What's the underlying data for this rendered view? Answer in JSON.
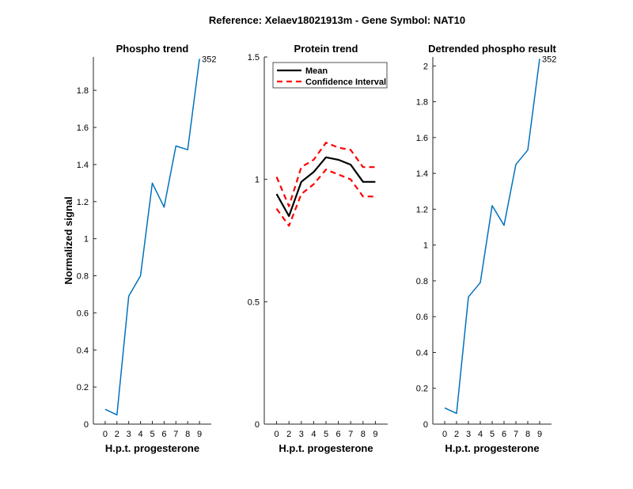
{
  "figure": {
    "title": "Reference:  Xelaev18021913m - Gene Symbol:  NAT10"
  },
  "colors": {
    "phospho_line": "#0072BD",
    "mean_line": "#000000",
    "ci_line": "#FF0000",
    "axis": "#262626",
    "text": "#000000"
  },
  "chart_data": [
    {
      "id": "phospho",
      "type": "line",
      "title": "Phospho trend",
      "xlabel": "H.p.t. progesterone",
      "ylabel": "Normalized signal",
      "xtick_labels": [
        "0",
        "2",
        "3",
        "4",
        "5",
        "6",
        "7",
        "8",
        "9"
      ],
      "yticks": [
        0,
        0.2,
        0.4,
        0.6,
        0.8,
        1,
        1.2,
        1.4,
        1.6,
        1.8
      ],
      "ytick_labels": [
        "0",
        "0.2",
        "0.4",
        "0.6",
        "0.8",
        "1",
        "1.2",
        "1.4",
        "1.6",
        "1.8"
      ],
      "xlim": [
        0,
        10
      ],
      "ylim": [
        0,
        1.98
      ],
      "series": [
        {
          "name": "phospho",
          "values": [
            0.08,
            0.05,
            0.69,
            0.8,
            1.3,
            1.17,
            1.5,
            1.48,
            1.97
          ]
        }
      ],
      "annotation": "352"
    },
    {
      "id": "protein",
      "type": "line",
      "title": "Protein trend",
      "xlabel": "H.p.t. progesterone",
      "ylabel": "",
      "xtick_labels": [
        "0",
        "2",
        "3",
        "4",
        "5",
        "6",
        "7",
        "8",
        "9"
      ],
      "yticks": [
        0,
        0.5,
        1,
        1.5
      ],
      "ytick_labels": [
        "0",
        "0.5",
        "1",
        "1.5"
      ],
      "xlim": [
        0,
        10
      ],
      "ylim": [
        0,
        1.5
      ],
      "series": [
        {
          "name": "Mean",
          "values": [
            0.94,
            0.85,
            0.99,
            1.03,
            1.09,
            1.08,
            1.06,
            0.99,
            0.99
          ]
        },
        {
          "name": "Confidence Interval",
          "values": [
            1.01,
            0.89,
            1.05,
            1.08,
            1.15,
            1.13,
            1.12,
            1.05,
            1.05
          ]
        },
        {
          "name": "Confidence Interval (lower)",
          "values": [
            0.88,
            0.81,
            0.94,
            0.98,
            1.04,
            1.02,
            1.0,
            0.93,
            0.93
          ]
        }
      ],
      "legend": {
        "position": "top-left",
        "entries": [
          "Mean",
          "Confidence Interval"
        ]
      }
    },
    {
      "id": "detrended",
      "type": "line",
      "title": "Detrended phospho result",
      "xlabel": "H.p.t. progesterone",
      "ylabel": "",
      "xtick_labels": [
        "0",
        "2",
        "3",
        "4",
        "5",
        "6",
        "7",
        "8",
        "9"
      ],
      "yticks": [
        0,
        0.2,
        0.4,
        0.6,
        0.8,
        1,
        1.2,
        1.4,
        1.6,
        1.8,
        2
      ],
      "ytick_labels": [
        "0",
        "0.2",
        "0.4",
        "0.6",
        "0.8",
        "1",
        "1.2",
        "1.4",
        "1.6",
        "1.8",
        "2"
      ],
      "xlim": [
        0,
        10
      ],
      "ylim": [
        0,
        2.05
      ],
      "series": [
        {
          "name": "detrended",
          "values": [
            0.09,
            0.06,
            0.71,
            0.79,
            1.22,
            1.11,
            1.45,
            1.53,
            2.04
          ]
        }
      ],
      "annotation": "352"
    }
  ]
}
